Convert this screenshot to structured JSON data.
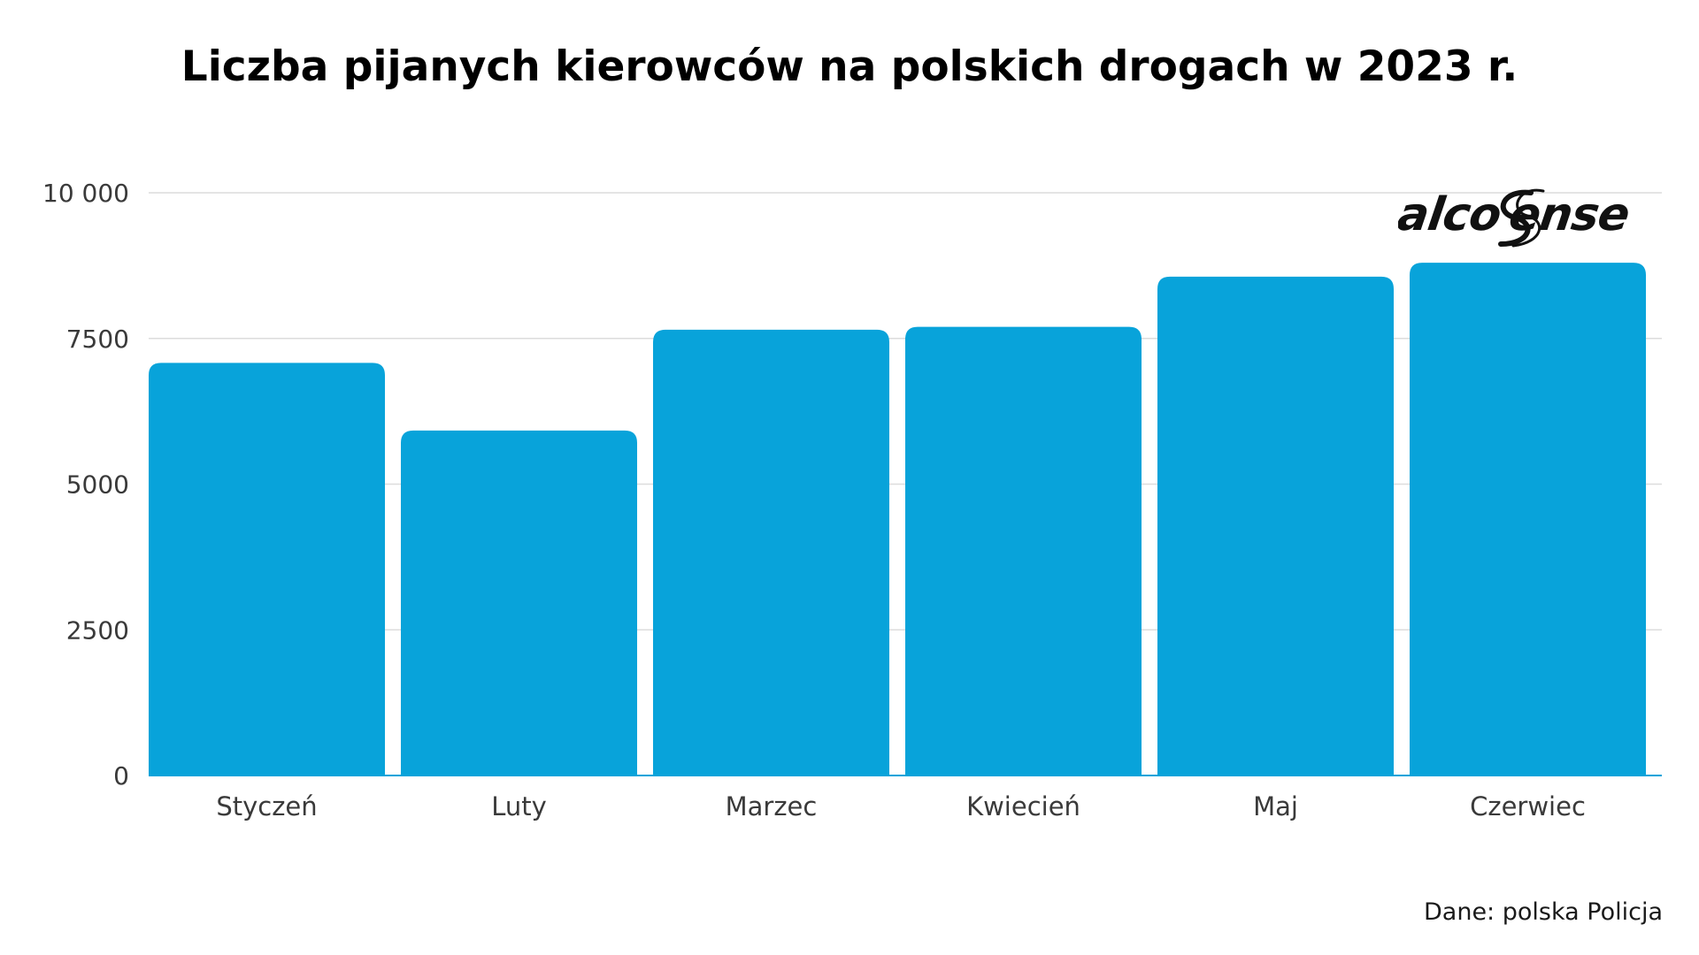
{
  "title": "Liczba pijanych kierowców na polskich drogach w 2023 r.",
  "source": "Dane: polska Policja",
  "logo_text": "alcoSense",
  "colors": {
    "bar": "#08a3da",
    "grid": "#dcdcdc",
    "axis": "#08a3da"
  },
  "chart_data": {
    "type": "bar",
    "title": "Liczba pijanych kierowców na polskich drogach w 2023 r.",
    "categories": [
      "Styczeń",
      "Luty",
      "Marzec",
      "Kwiecień",
      "Maj",
      "Czerwiec"
    ],
    "values": [
      7080,
      5920,
      7650,
      7700,
      8560,
      8800
    ],
    "xlabel": "",
    "ylabel": "",
    "ylim": [
      0,
      10000
    ],
    "yticks": [
      0,
      2500,
      5000,
      7500,
      10000
    ],
    "ytick_labels": [
      "0",
      "2500",
      "5000",
      "7500",
      "10 000"
    ],
    "grid": true,
    "legend": "none"
  }
}
